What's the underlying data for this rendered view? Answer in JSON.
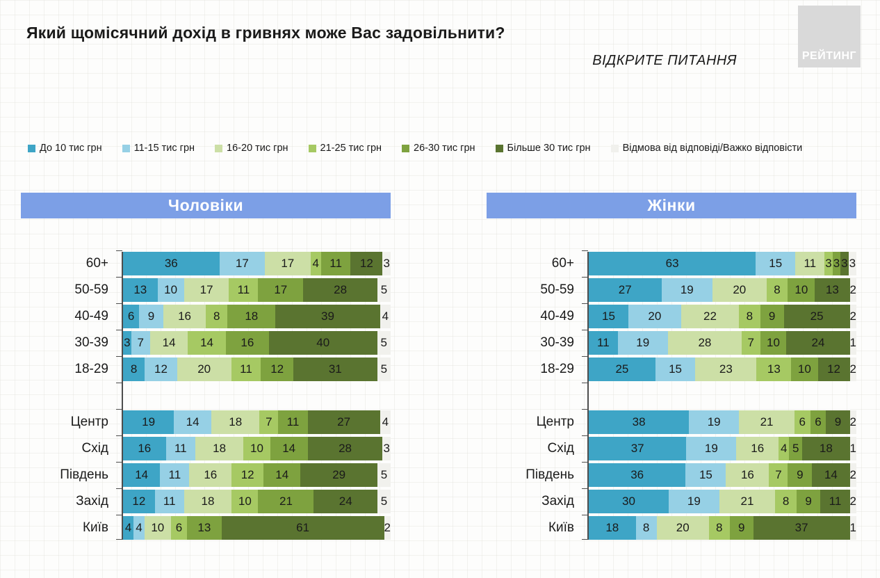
{
  "header": {
    "title": "Який щомісячний дохід в гривнях може Вас задовільнити?",
    "subtitle": "ВІДКРИТЕ ПИТАННЯ",
    "logo": "РЕЙТИНГ"
  },
  "legend": [
    {
      "label": "До 10 тис грн",
      "color": "#3ea5c6"
    },
    {
      "label": "11-15 тис грн",
      "color": "#96d0e5"
    },
    {
      "label": "16-20 тис грн",
      "color": "#ccdfa6"
    },
    {
      "label": "21-25 тис грн",
      "color": "#a6c963"
    },
    {
      "label": "26-30 тис грн",
      "color": "#7ea23f"
    },
    {
      "label": "Більше 30 тис грн",
      "color": "#5a7430"
    },
    {
      "label": "Відмова від відповіді/Важко відповісти",
      "color": "#f1f1ed"
    }
  ],
  "chart_data": {
    "type": "bar",
    "stacked": true,
    "orientation": "horizontal",
    "unit": "%",
    "xlim": [
      0,
      100
    ],
    "grid": "faint",
    "legend_position": "top",
    "series_labels": [
      "До 10 тис грн",
      "11-15 тис грн",
      "16-20 тис грн",
      "21-25 тис грн",
      "26-30 тис грн",
      "Більше 30 тис грн",
      "Відмова від відповіді/Важко відповісти"
    ],
    "group_break_after_row": 4,
    "charts": [
      {
        "title": "Чоловіки",
        "rows": [
          {
            "category": "60+",
            "values": [
              36,
              17,
              17,
              4,
              11,
              12,
              3
            ]
          },
          {
            "category": "50-59",
            "values": [
              13,
              10,
              17,
              11,
              17,
              28,
              5
            ]
          },
          {
            "category": "40-49",
            "values": [
              6,
              9,
              16,
              8,
              18,
              39,
              4
            ]
          },
          {
            "category": "30-39",
            "values": [
              3,
              7,
              14,
              14,
              16,
              40,
              5
            ]
          },
          {
            "category": "18-29",
            "values": [
              8,
              12,
              20,
              11,
              12,
              31,
              5
            ]
          },
          {
            "category": "Центр",
            "values": [
              19,
              14,
              18,
              7,
              11,
              27,
              4
            ]
          },
          {
            "category": "Схід",
            "values": [
              16,
              11,
              18,
              10,
              14,
              28,
              3
            ]
          },
          {
            "category": "Південь",
            "values": [
              14,
              11,
              16,
              12,
              14,
              29,
              5
            ]
          },
          {
            "category": "Захід",
            "values": [
              12,
              11,
              18,
              10,
              21,
              24,
              5
            ]
          },
          {
            "category": "Київ",
            "values": [
              4,
              4,
              10,
              6,
              13,
              61,
              2
            ]
          }
        ]
      },
      {
        "title": "Жінки",
        "rows": [
          {
            "category": "60+",
            "values": [
              63,
              15,
              11,
              3,
              3,
              3,
              3
            ]
          },
          {
            "category": "50-59",
            "values": [
              27,
              19,
              20,
              8,
              10,
              13,
              2
            ]
          },
          {
            "category": "40-49",
            "values": [
              15,
              20,
              22,
              8,
              9,
              25,
              2
            ]
          },
          {
            "category": "30-39",
            "values": [
              11,
              19,
              28,
              7,
              10,
              24,
              1
            ]
          },
          {
            "category": "18-29",
            "values": [
              25,
              15,
              23,
              13,
              10,
              12,
              2
            ]
          },
          {
            "category": "Центр",
            "values": [
              38,
              19,
              21,
              6,
              6,
              9,
              2
            ]
          },
          {
            "category": "Схід",
            "values": [
              37,
              19,
              16,
              4,
              5,
              18,
              1
            ]
          },
          {
            "category": "Південь",
            "values": [
              36,
              15,
              16,
              7,
              9,
              14,
              2
            ]
          },
          {
            "category": "Захід",
            "values": [
              30,
              19,
              21,
              8,
              9,
              11,
              2
            ]
          },
          {
            "category": "Київ",
            "values": [
              18,
              8,
              20,
              8,
              9,
              37,
              1
            ]
          }
        ]
      }
    ]
  }
}
